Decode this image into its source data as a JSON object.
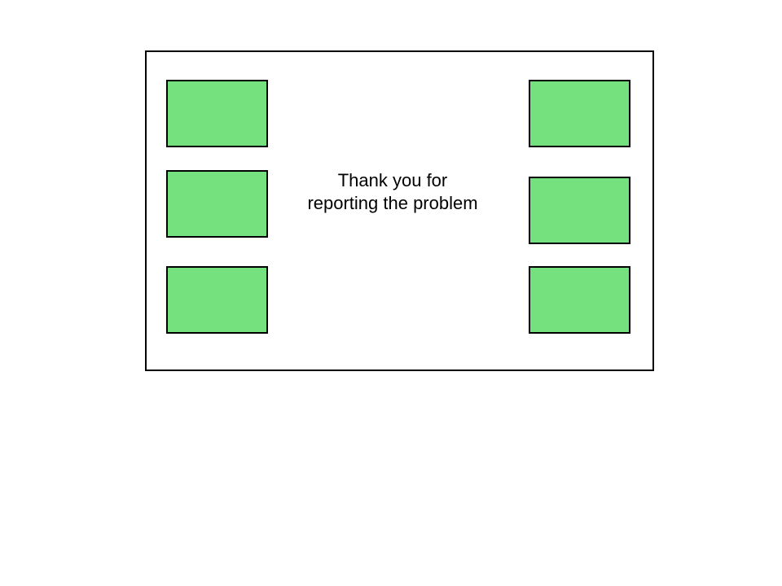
{
  "message": {
    "line1": "Thank you for",
    "line2": "reporting the problem"
  },
  "colors": {
    "tile_fill": "#74e07e",
    "border": "#000000",
    "background": "#ffffff"
  }
}
